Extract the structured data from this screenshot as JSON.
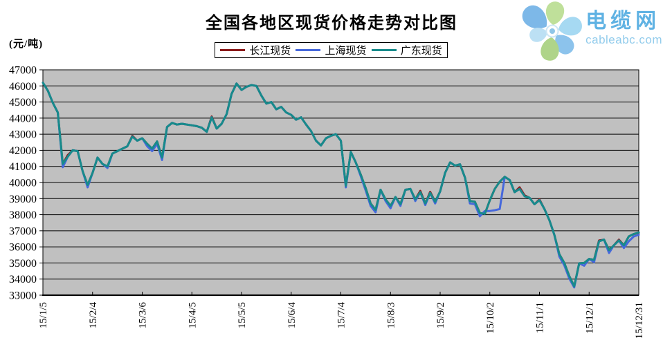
{
  "title": "全国各地区现货价格走势对比图",
  "unit_label": "(元/吨)",
  "logo": {
    "name": "电缆网",
    "domain": "cableabc.com"
  },
  "legend": [
    {
      "label": "长江现货",
      "color": "#8B1A1A"
    },
    {
      "label": "上海现货",
      "color": "#4668DC"
    },
    {
      "label": "广东现货",
      "color": "#178B8B"
    }
  ],
  "chart_data": {
    "type": "line",
    "title": "全国各地区现货价格走势对比图",
    "ylabel": "(元/吨)",
    "ylim": [
      33000,
      47000
    ],
    "y_tick_step": 1000,
    "y_tick_labels": [
      "33000",
      "34000",
      "35000",
      "36000",
      "37000",
      "38000",
      "39000",
      "40000",
      "41000",
      "42000",
      "43000",
      "44000",
      "45000",
      "46000",
      "47000"
    ],
    "x_tick_labels": [
      "15/1/5",
      "15/2/4",
      "15/3/6",
      "15/4/5",
      "15/5/5",
      "15/6/4",
      "15/7/4",
      "15/8/3",
      "15/9/2",
      "15/10/2",
      "15/11/1",
      "15/12/1",
      "15/12/31"
    ],
    "grid": true,
    "plot_bg": "#C0C0C0",
    "legend_position": "top",
    "series": [
      {
        "key": "changjiang",
        "name": "长江现货",
        "color": "#8B1A1A",
        "values": [
          46200,
          45700,
          44950,
          44350,
          41150,
          41700,
          42000,
          41950,
          40700,
          39850,
          40600,
          41550,
          41150,
          41000,
          41800,
          41950,
          42100,
          42250,
          42900,
          42600,
          42750,
          42400,
          42100,
          42550,
          41550,
          43450,
          43700,
          43600,
          43650,
          43600,
          43550,
          43500,
          43400,
          43150,
          44100,
          43350,
          43650,
          44250,
          45500,
          46150,
          45750,
          45950,
          46050,
          46000,
          45400,
          44900,
          45000,
          44550,
          44700,
          44350,
          44200,
          43900,
          44050,
          43600,
          43200,
          42600,
          42300,
          42750,
          42900,
          43000,
          42600,
          39800,
          41900,
          41250,
          40500,
          39650,
          38700,
          38300,
          39550,
          38950,
          38550,
          39100,
          38650,
          39550,
          39600,
          38950,
          39480,
          38700,
          39420,
          38800,
          39450,
          40600,
          41250,
          41050,
          41130,
          40300,
          38850,
          38800,
          38100,
          38050,
          38900,
          39600,
          40050,
          40350,
          40150,
          39400,
          39700,
          39200,
          39050,
          38650,
          38950,
          38350,
          37650,
          36750,
          35550,
          35000,
          34200,
          33550,
          34980,
          35000,
          35250,
          35200,
          36400,
          36450,
          35800,
          36100,
          36450,
          36100,
          36650,
          36800,
          36880
        ]
      },
      {
        "key": "shanghai",
        "name": "上海现货",
        "color": "#4668DC",
        "values": [
          46200,
          45700,
          44950,
          44350,
          40950,
          41600,
          42000,
          41950,
          40700,
          39700,
          40600,
          41550,
          41150,
          40900,
          41800,
          41950,
          42100,
          42250,
          42850,
          42600,
          42750,
          42250,
          41950,
          42400,
          41400,
          43450,
          43700,
          43600,
          43650,
          43600,
          43550,
          43500,
          43400,
          43150,
          44050,
          43350,
          43650,
          44250,
          45500,
          46150,
          45750,
          45950,
          46050,
          46000,
          45400,
          44900,
          45000,
          44550,
          44700,
          44350,
          44200,
          43900,
          44050,
          43600,
          43200,
          42600,
          42300,
          42750,
          42900,
          43000,
          42600,
          39700,
          41900,
          41250,
          40400,
          39500,
          38550,
          38150,
          39550,
          38850,
          38400,
          39100,
          38550,
          39550,
          39600,
          38850,
          39400,
          38600,
          39350,
          38700,
          39450,
          40600,
          41250,
          41050,
          41130,
          40300,
          38700,
          38650,
          37900,
          38230,
          38230,
          38280,
          38350,
          40350,
          40150,
          39400,
          39600,
          39150,
          39050,
          38650,
          38900,
          38350,
          37650,
          36750,
          35400,
          34850,
          34050,
          33480,
          34980,
          34830,
          35250,
          35050,
          36350,
          36450,
          35620,
          36100,
          36400,
          35930,
          36350,
          36650,
          36750
        ]
      },
      {
        "key": "guangdong",
        "name": "广东现货",
        "color": "#178B8B",
        "values": [
          46200,
          45700,
          44950,
          44350,
          41150,
          41600,
          42000,
          41950,
          40700,
          39850,
          40600,
          41550,
          41150,
          41000,
          41800,
          41950,
          42100,
          42250,
          42850,
          42600,
          42750,
          42400,
          42100,
          42550,
          41550,
          43450,
          43700,
          43600,
          43650,
          43600,
          43550,
          43500,
          43400,
          43150,
          44050,
          43350,
          43650,
          44250,
          45500,
          46150,
          45750,
          45950,
          46050,
          46000,
          45400,
          44900,
          45000,
          44550,
          44700,
          44350,
          44200,
          43900,
          44050,
          43600,
          43200,
          42600,
          42300,
          42750,
          42900,
          43000,
          42600,
          39800,
          41900,
          41250,
          40500,
          39650,
          38700,
          38300,
          39550,
          38950,
          38550,
          39100,
          38650,
          39550,
          39600,
          38950,
          39400,
          38700,
          39350,
          38800,
          39450,
          40600,
          41250,
          41050,
          41130,
          40300,
          38850,
          38800,
          38100,
          38050,
          38900,
          39600,
          40050,
          40350,
          40150,
          39400,
          39600,
          39150,
          39050,
          38650,
          38900,
          38350,
          37650,
          36750,
          35550,
          35000,
          34200,
          33550,
          34980,
          35000,
          35250,
          35200,
          36350,
          36450,
          35800,
          36100,
          36400,
          36100,
          36650,
          36800,
          36900
        ]
      }
    ]
  }
}
